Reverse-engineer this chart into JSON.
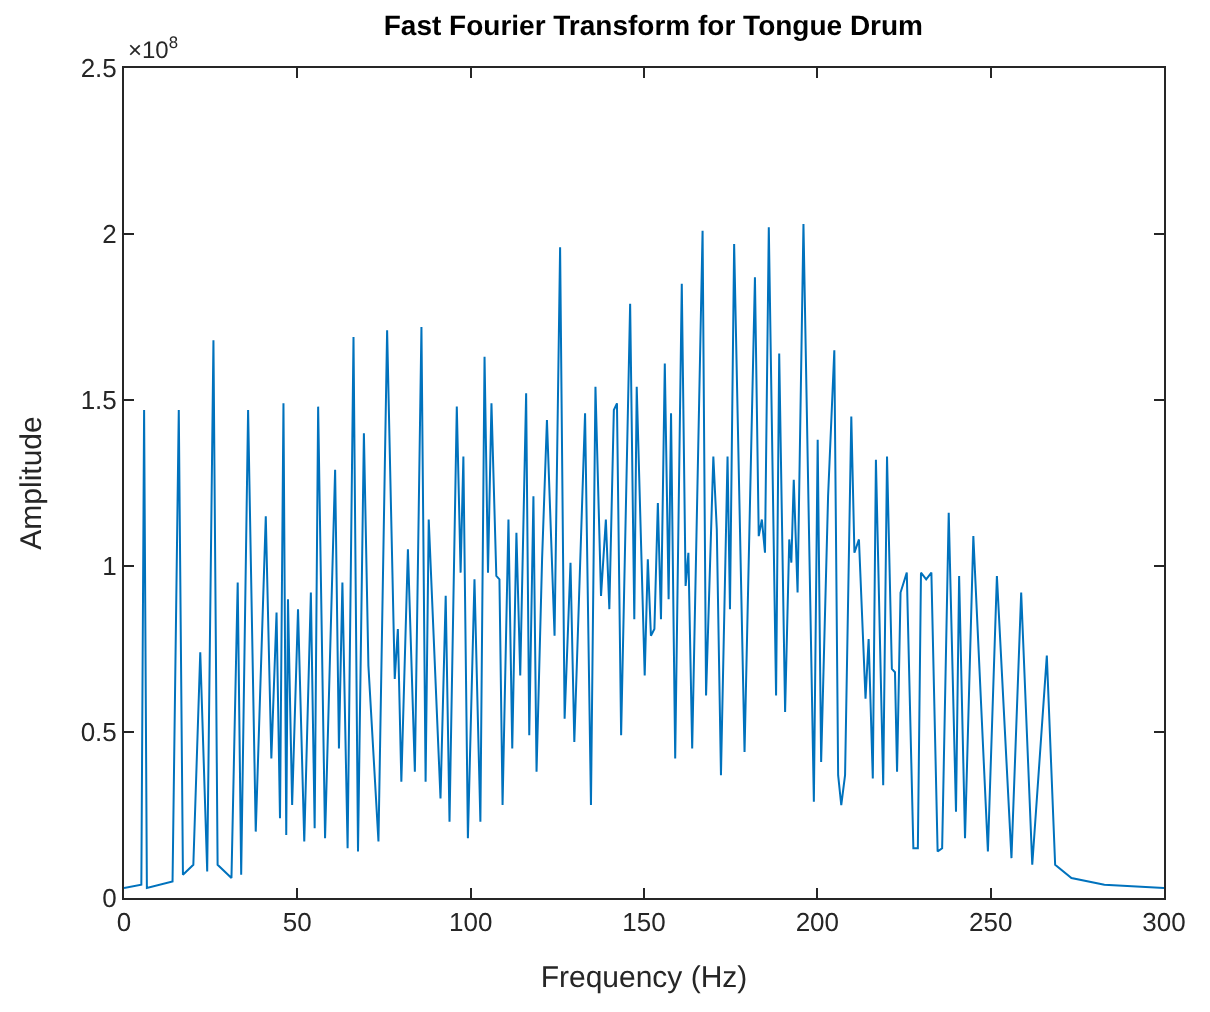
{
  "chart_data": {
    "type": "line",
    "title": "Fast Fourier Transform for Tongue Drum",
    "xlabel": "Frequency (Hz)",
    "ylabel": "Amplitude",
    "annotations": [
      "×10$^{8}$"
    ],
    "xlim": [
      0,
      300
    ],
    "xticks": [
      0,
      50,
      100,
      150,
      200,
      250,
      300
    ],
    "ylim": [
      0,
      2.5
    ],
    "yticks": [
      0,
      0.5,
      1,
      1.5,
      2,
      2.5
    ],
    "marker": "none",
    "line_style": "solid",
    "series": [
      {
        "color": "#0072bd",
        "x": [
          0,
          5,
          5.8,
          6.6,
          14,
          15.8,
          17,
          20,
          22,
          24,
          25.8,
          27,
          31,
          32.8,
          33.8,
          35.8,
          38,
          40.9,
          42.5,
          44,
          45,
          46,
          46.8,
          47.3,
          48.5,
          50.2,
          52,
          53.9,
          55,
          56,
          58,
          60.9,
          62,
          63,
          64.5,
          66.2,
          67.5,
          69.2,
          70.5,
          73.4,
          75.9,
          78.1,
          79,
          80,
          81.9,
          83.9,
          85.8,
          87,
          87.9,
          91.3,
          92.8,
          93.9,
          96,
          97.1,
          97.9,
          99.2,
          101.1,
          102.8,
          104,
          105,
          106,
          107.4,
          108.3,
          109.2,
          110.9,
          112,
          113.2,
          114.3,
          116,
          116.9,
          118.1,
          119,
          120.6,
          122,
          124.2,
          125.8,
          127.1,
          128.8,
          129.9,
          133,
          134.7,
          136,
          137.6,
          139,
          140,
          141.3,
          142.2,
          143.4,
          146,
          147.2,
          147.9,
          150.2,
          151.1,
          152,
          153,
          154,
          154.9,
          156,
          157.1,
          157.8,
          159,
          160.9,
          162,
          162.8,
          163.9,
          166.9,
          167.9,
          170,
          171,
          172.2,
          174.1,
          174.8,
          176,
          179,
          182,
          183.1,
          184,
          184.9,
          186,
          188.1,
          189,
          190.7,
          191.9,
          192.5,
          193.2,
          194.3,
          196,
          199,
          200.1,
          201.1,
          203.1,
          204.9,
          206,
          206.9,
          208,
          209.8,
          210.7,
          212,
          213.9,
          214.8,
          216,
          216.9,
          219,
          220.1,
          221.5,
          222.4,
          223,
          224,
          225.8,
          227.7,
          229,
          229.9,
          231.4,
          232.9,
          234.7,
          236,
          237.9,
          240,
          240.9,
          242.6,
          245,
          249.2,
          251.8,
          256,
          258.8,
          262,
          266.2,
          268.6,
          273.3,
          282.8,
          300
        ],
        "values": [
          0.03,
          0.04,
          1.47,
          0.03,
          0.05,
          1.47,
          0.07,
          0.1,
          0.74,
          0.08,
          1.68,
          0.1,
          0.06,
          0.95,
          0.07,
          1.47,
          0.2,
          1.15,
          0.42,
          0.86,
          0.24,
          1.49,
          0.19,
          0.9,
          0.28,
          0.87,
          0.17,
          0.92,
          0.21,
          1.48,
          0.18,
          1.29,
          0.45,
          0.95,
          0.15,
          1.69,
          0.14,
          1.4,
          0.7,
          0.17,
          1.71,
          0.66,
          0.81,
          0.35,
          1.05,
          0.38,
          1.72,
          0.35,
          1.14,
          0.3,
          0.91,
          0.23,
          1.48,
          0.98,
          1.33,
          0.18,
          0.96,
          0.23,
          1.63,
          0.98,
          1.49,
          0.97,
          0.96,
          0.28,
          1.14,
          0.45,
          1.1,
          0.67,
          1.52,
          0.49,
          1.21,
          0.38,
          1.02,
          1.44,
          0.79,
          1.96,
          0.54,
          1.01,
          0.47,
          1.46,
          0.28,
          1.54,
          0.91,
          1.14,
          0.87,
          1.47,
          1.49,
          0.49,
          1.79,
          0.84,
          1.54,
          0.67,
          1.02,
          0.79,
          0.81,
          1.19,
          0.84,
          1.61,
          0.9,
          1.46,
          0.42,
          1.85,
          0.94,
          1.04,
          0.45,
          2.01,
          0.61,
          1.33,
          1.11,
          0.37,
          1.33,
          0.87,
          1.97,
          0.44,
          1.87,
          1.09,
          1.14,
          1.04,
          2.02,
          0.61,
          1.64,
          0.56,
          1.08,
          1.01,
          1.26,
          0.92,
          2.03,
          0.29,
          1.38,
          0.41,
          1.21,
          1.65,
          0.37,
          0.28,
          0.37,
          1.45,
          1.04,
          1.08,
          0.6,
          0.78,
          0.36,
          1.32,
          0.34,
          1.33,
          0.69,
          0.68,
          0.38,
          0.92,
          0.98,
          0.15,
          0.15,
          0.98,
          0.96,
          0.98,
          0.14,
          0.15,
          1.16,
          0.26,
          0.97,
          0.18,
          1.09,
          0.14,
          0.97,
          0.12,
          0.92,
          0.1,
          0.73,
          0.1,
          0.06,
          0.04,
          0.03
        ]
      }
    ]
  }
}
